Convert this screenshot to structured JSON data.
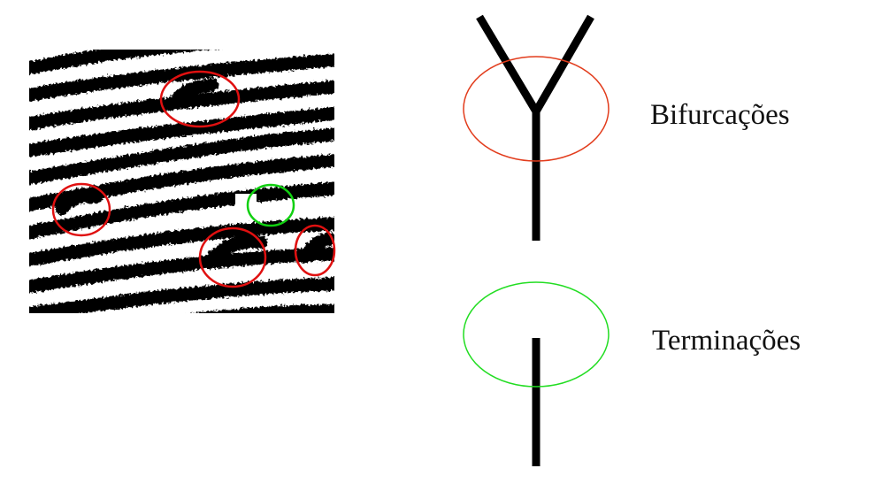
{
  "labels": {
    "bifurcation": "Bifurcações",
    "termination": "Terminações"
  },
  "colors": {
    "ridge": "#000000",
    "background": "#ffffff",
    "bifurcation_marker": "#e23c1c",
    "termination_marker": "#22dd22",
    "fingerprint_bifurcation_marker": "#e01010",
    "fingerprint_termination_marker": "#11d011"
  },
  "fingerprint": {
    "marked_bifurcations": 4,
    "marked_terminations": 1
  }
}
